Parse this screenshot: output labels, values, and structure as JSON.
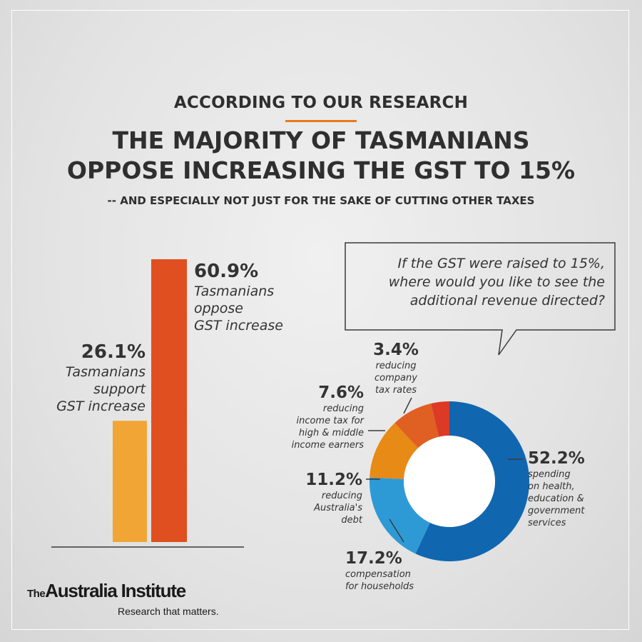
{
  "header": {
    "kicker": "ACCORDING TO OUR RESEARCH",
    "headline_line1": "THE MAJORITY OF TASMANIANS",
    "headline_line2": "OPPOSE INCREASING THE GST TO 15%",
    "subhead": "-- AND ESPECIALLY NOT JUST FOR THE SAKE OF CUTTING OTHER TAXES"
  },
  "colors": {
    "support": "#f0a534",
    "oppose": "#e04f1f",
    "health": "#1166b0",
    "compensation": "#2d9ad6",
    "debt": "#e88a16",
    "income_tax": "#e05f22",
    "company_tax": "#dc3a25",
    "kicker_rule": "#e87a1f"
  },
  "chart_data": [
    {
      "type": "bar",
      "categories": [
        "support",
        "oppose"
      ],
      "values": [
        26.1,
        60.9
      ],
      "ylim": [
        0,
        60.9
      ],
      "labels": [
        {
          "pct": "26.1%",
          "lines": [
            "Tasmanians",
            "support",
            "GST increase"
          ]
        },
        {
          "pct": "60.9%",
          "lines": [
            "Tasmanians",
            "oppose",
            "GST increase"
          ]
        }
      ]
    },
    {
      "type": "pie",
      "question": [
        "If the GST were raised to 15%,",
        "where would you like to see the",
        "additional revenue directed?"
      ],
      "slices": [
        {
          "key": "health",
          "value": 52.2,
          "pct": "52.2%",
          "lines": [
            "spending",
            "on health,",
            "education &",
            "government",
            "services"
          ]
        },
        {
          "key": "compensation",
          "value": 17.2,
          "pct": "17.2%",
          "lines": [
            "compensation",
            "for households"
          ]
        },
        {
          "key": "debt",
          "value": 11.2,
          "pct": "11.2%",
          "lines": [
            "reducing",
            "Australia's",
            "debt"
          ]
        },
        {
          "key": "income_tax",
          "value": 7.6,
          "pct": "7.6%",
          "lines": [
            "reducing",
            "income tax for",
            "high & middle",
            "income earners"
          ]
        },
        {
          "key": "company_tax",
          "value": 3.4,
          "pct": "3.4%",
          "lines": [
            "reducing",
            "company",
            "tax rates"
          ]
        }
      ]
    }
  ],
  "logo": {
    "the": "The",
    "name": "Australia Institute",
    "tagline": "Research that matters."
  }
}
